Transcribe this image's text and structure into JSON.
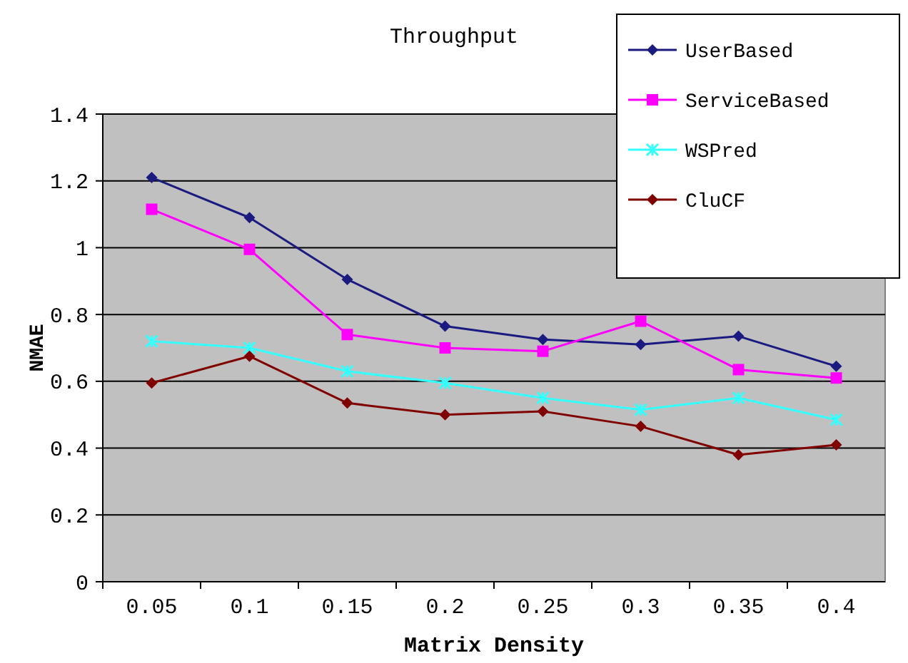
{
  "chart_data": {
    "type": "line",
    "title": "Throughput",
    "xlabel": "Matrix Density",
    "ylabel": "NMAE",
    "categories": [
      "0.05",
      "0.1",
      "0.15",
      "0.2",
      "0.25",
      "0.3",
      "0.35",
      "0.4"
    ],
    "series": [
      {
        "name": "UserBased",
        "color": "#1a1a80",
        "marker": "diamond",
        "values": [
          1.21,
          1.09,
          0.905,
          0.765,
          0.725,
          0.71,
          0.735,
          0.645
        ]
      },
      {
        "name": "ServiceBased",
        "color": "#ff00ff",
        "marker": "square",
        "values": [
          1.115,
          0.995,
          0.74,
          0.7,
          0.69,
          0.78,
          0.635,
          0.61
        ]
      },
      {
        "name": "WSPred",
        "color": "#33ffff",
        "marker": "cross",
        "values": [
          0.72,
          0.7,
          0.63,
          0.595,
          0.55,
          0.515,
          0.55,
          0.485
        ]
      },
      {
        "name": "CluCF",
        "color": "#800000",
        "marker": "diamond",
        "values": [
          0.595,
          0.675,
          0.535,
          0.5,
          0.51,
          0.465,
          0.38,
          0.41
        ]
      }
    ],
    "ylim": [
      0,
      1.4
    ],
    "yticks": [
      0,
      0.2,
      0.4,
      0.6,
      0.8,
      1,
      1.2,
      1.4
    ],
    "grid": "y",
    "legend": "top right"
  }
}
